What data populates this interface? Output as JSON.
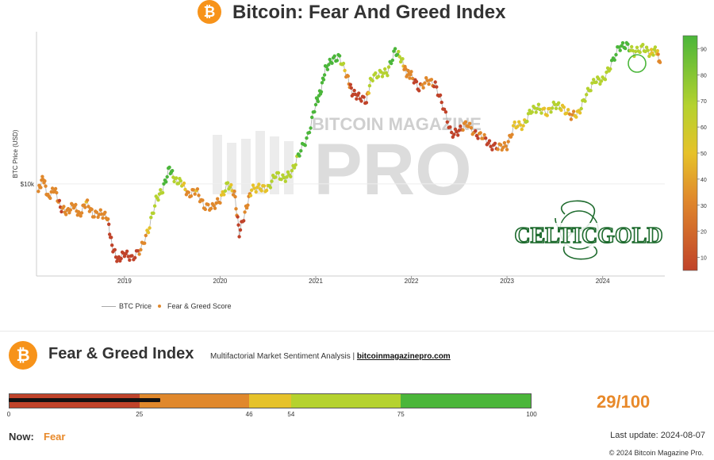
{
  "header": {
    "title": "Bitcoin: Fear And Greed Index",
    "logo_glyph": "₿"
  },
  "watermark": {
    "line1": "BITCOIN MAGAZINE",
    "line2": "PRO"
  },
  "brand_logo": {
    "text": "CELTICGOLD"
  },
  "colors": {
    "extreme_fear": "#c0432a",
    "fear": "#e0882c",
    "neutral": "#e6c22a",
    "greed": "#b5d22f",
    "extreme_greed": "#4bb63a",
    "btc_orange": "#f7931a",
    "score_orange": "#e8892a"
  },
  "chart_data": {
    "type": "scatter",
    "title": "Bitcoin: Fear And Greed Index",
    "ylabel": "BTC Price (USD)",
    "yscale": "log",
    "y_ticks": [
      {
        "value": 10000,
        "label": "$10k"
      }
    ],
    "x_ticks": [
      "2019",
      "2020",
      "2021",
      "2022",
      "2023",
      "2024"
    ],
    "xlim": [
      2018.08,
      2024.65
    ],
    "ylim": [
      3000,
      80000
    ],
    "colorbar": {
      "min": 5,
      "max": 95,
      "ticks": [
        10,
        20,
        30,
        40,
        50,
        60,
        70,
        80,
        90
      ]
    },
    "legend": [
      {
        "name": "BTC Price"
      },
      {
        "name": "Fear & Greed Score"
      }
    ],
    "series": [
      {
        "name": "BTC Price",
        "points": [
          [
            2018.1,
            9000,
            30
          ],
          [
            2018.15,
            11000,
            42
          ],
          [
            2018.2,
            8200,
            26
          ],
          [
            2018.27,
            9400,
            38
          ],
          [
            2018.33,
            7200,
            22
          ],
          [
            2018.4,
            6700,
            32
          ],
          [
            2018.47,
            7500,
            34
          ],
          [
            2018.53,
            6400,
            28
          ],
          [
            2018.6,
            7800,
            46
          ],
          [
            2018.67,
            6500,
            30
          ],
          [
            2018.75,
            6600,
            32
          ],
          [
            2018.82,
            6300,
            30
          ],
          [
            2018.87,
            4200,
            12
          ],
          [
            2018.93,
            3400,
            8
          ],
          [
            2019.0,
            3800,
            18
          ],
          [
            2019.08,
            3500,
            14
          ],
          [
            2019.17,
            4000,
            28
          ],
          [
            2019.25,
            5200,
            50
          ],
          [
            2019.33,
            8000,
            70
          ],
          [
            2019.4,
            9200,
            74
          ],
          [
            2019.47,
            12500,
            84
          ],
          [
            2019.53,
            10500,
            66
          ],
          [
            2019.6,
            10200,
            56
          ],
          [
            2019.67,
            8500,
            40
          ],
          [
            2019.75,
            9200,
            46
          ],
          [
            2019.83,
            7300,
            30
          ],
          [
            2019.92,
            7200,
            28
          ],
          [
            2020.0,
            8000,
            44
          ],
          [
            2020.08,
            10000,
            62
          ],
          [
            2020.15,
            8800,
            40
          ],
          [
            2020.2,
            5000,
            12
          ],
          [
            2020.27,
            7000,
            30
          ],
          [
            2020.33,
            9300,
            52
          ],
          [
            2020.42,
            9500,
            52
          ],
          [
            2020.5,
            9300,
            52
          ],
          [
            2020.58,
            11500,
            74
          ],
          [
            2020.67,
            10700,
            60
          ],
          [
            2020.75,
            11800,
            64
          ],
          [
            2020.83,
            15500,
            80
          ],
          [
            2020.92,
            19500,
            90
          ],
          [
            2021.0,
            31000,
            94
          ],
          [
            2021.05,
            36000,
            82
          ],
          [
            2021.1,
            50000,
            93
          ],
          [
            2021.17,
            57000,
            92
          ],
          [
            2021.25,
            59000,
            82
          ],
          [
            2021.33,
            45000,
            30
          ],
          [
            2021.38,
            36000,
            22
          ],
          [
            2021.45,
            34000,
            22
          ],
          [
            2021.53,
            32000,
            24
          ],
          [
            2021.58,
            44000,
            70
          ],
          [
            2021.67,
            47000,
            74
          ],
          [
            2021.75,
            48000,
            72
          ],
          [
            2021.83,
            65000,
            88
          ],
          [
            2021.9,
            57000,
            60
          ],
          [
            2021.95,
            47000,
            30
          ],
          [
            2022.0,
            46000,
            26
          ],
          [
            2022.08,
            38000,
            22
          ],
          [
            2022.17,
            43000,
            36
          ],
          [
            2022.25,
            40000,
            22
          ],
          [
            2022.33,
            30000,
            18
          ],
          [
            2022.42,
            20000,
            10
          ],
          [
            2022.5,
            21000,
            20
          ],
          [
            2022.58,
            23500,
            30
          ],
          [
            2022.67,
            20000,
            24
          ],
          [
            2022.75,
            19500,
            26
          ],
          [
            2022.83,
            17000,
            22
          ],
          [
            2022.92,
            16800,
            26
          ],
          [
            2023.0,
            17000,
            30
          ],
          [
            2023.08,
            23000,
            50
          ],
          [
            2023.17,
            22500,
            52
          ],
          [
            2023.25,
            28000,
            62
          ],
          [
            2023.33,
            29000,
            56
          ],
          [
            2023.42,
            27000,
            50
          ],
          [
            2023.5,
            30500,
            58
          ],
          [
            2023.58,
            29000,
            52
          ],
          [
            2023.67,
            26000,
            44
          ],
          [
            2023.75,
            27000,
            48
          ],
          [
            2023.83,
            35000,
            70
          ],
          [
            2023.92,
            43000,
            72
          ],
          [
            2024.0,
            42500,
            70
          ],
          [
            2024.08,
            52000,
            74
          ],
          [
            2024.17,
            68000,
            88
          ],
          [
            2024.25,
            70000,
            80
          ],
          [
            2024.33,
            63000,
            66
          ],
          [
            2024.42,
            68000,
            74
          ],
          [
            2024.5,
            62000,
            52
          ],
          [
            2024.56,
            66000,
            56
          ],
          [
            2024.6,
            55000,
            29
          ]
        ]
      }
    ]
  },
  "gauge": {
    "title": "Fear & Greed Index",
    "subtitle": "Multifactorial Market Sentiment Analysis",
    "separator": "|",
    "link": "bitcoinmagazinepro.com",
    "value": 29,
    "max": 100,
    "score_text": "29/100",
    "segments": [
      {
        "from": 0,
        "to": 25,
        "color": "#c0432a"
      },
      {
        "from": 25,
        "to": 46,
        "color": "#e0882c"
      },
      {
        "from": 46,
        "to": 54,
        "color": "#e6c22a"
      },
      {
        "from": 54,
        "to": 75,
        "color": "#b5d22f"
      },
      {
        "from": 75,
        "to": 100,
        "color": "#4bb63a"
      }
    ],
    "tick_labels": [
      "0",
      "25",
      "46",
      "54",
      "75",
      "100"
    ],
    "now_label": "Now:",
    "now_value": "Fear",
    "last_update": "Last update: 2024-08-07",
    "copyright": "© 2024 Bitcoin Magazine Pro."
  }
}
